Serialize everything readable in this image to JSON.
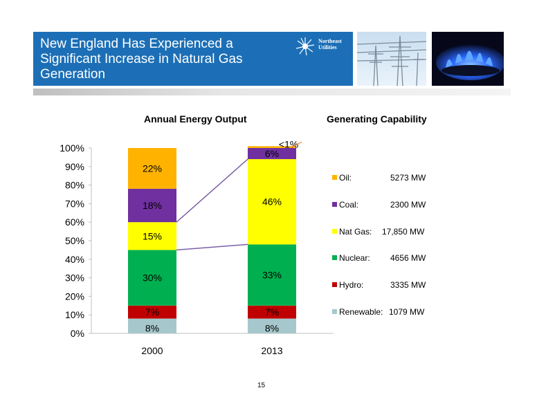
{
  "header": {
    "title": "New England Has Experienced a Significant Increase in Natural Gas Generation",
    "logo_text": "Northeast\nUtilities"
  },
  "colors": {
    "banner": "#1c6fb6",
    "oil": "#ffb300",
    "coal": "#7030a0",
    "nat_gas": "#ffff00",
    "nuclear": "#00b050",
    "hydro": "#c00000",
    "renewable": "#a6c8cc"
  },
  "chart_data": {
    "type": "bar",
    "stacked": true,
    "title": "Annual Energy Output",
    "categories": [
      "2000",
      "2013"
    ],
    "ylim": [
      0,
      100
    ],
    "yticks": [
      "0%",
      "10%",
      "20%",
      "30%",
      "40%",
      "50%",
      "60%",
      "70%",
      "80%",
      "90%",
      "100%"
    ],
    "series": [
      {
        "name": "Renewable",
        "values": [
          8,
          8
        ],
        "labels": [
          "8%",
          "8%"
        ]
      },
      {
        "name": "Hydro",
        "values": [
          7,
          7
        ],
        "labels": [
          "7%",
          "7%"
        ]
      },
      {
        "name": "Nuclear",
        "values": [
          30,
          33
        ],
        "labels": [
          "30%",
          "33%"
        ]
      },
      {
        "name": "Nat Gas",
        "values": [
          15,
          46
        ],
        "labels": [
          "15%",
          "46%"
        ]
      },
      {
        "name": "Coal",
        "values": [
          18,
          6
        ],
        "labels": [
          "18%",
          "6%"
        ]
      },
      {
        "name": "Oil",
        "values": [
          22,
          1
        ],
        "labels": [
          "22%",
          "<1%"
        ]
      }
    ],
    "legend_position": "right"
  },
  "capability": {
    "title": "Generating Capability",
    "items": [
      {
        "label": "Oil:",
        "value": "5273 MW",
        "color": "#ffb300"
      },
      {
        "label": "Coal:",
        "value": "2300 MW",
        "color": "#7030a0"
      },
      {
        "label": "Nat Gas:",
        "value": "17,850 MW",
        "color": "#ffff00"
      },
      {
        "label": "Nuclear:",
        "value": "4656 MW",
        "color": "#00b050"
      },
      {
        "label": "Hydro:",
        "value": "3335 MW",
        "color": "#c00000"
      },
      {
        "label": "Renewable:",
        "value": "1079 MW",
        "color": "#a6c8cc"
      }
    ]
  },
  "page_number": "15"
}
